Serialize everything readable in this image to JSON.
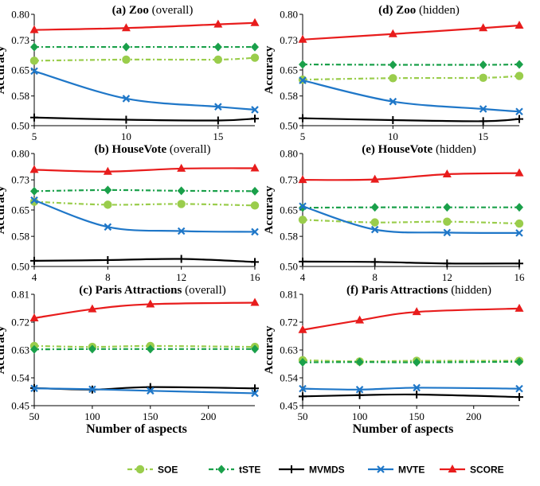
{
  "legend": [
    {
      "key": "SOE",
      "label": "SOE",
      "color": "#9acd4c",
      "dash": "6,3,2,3",
      "marker": "circle"
    },
    {
      "key": "tSTE",
      "label": "tSTE",
      "color": "#1aa04a",
      "dash": "6,3,2,3",
      "marker": "diamond"
    },
    {
      "key": "MVMDS",
      "label": "MVMDS",
      "color": "#000000",
      "dash": "",
      "marker": "plus"
    },
    {
      "key": "MVTE",
      "label": "MVTE",
      "color": "#1f77c8",
      "dash": "",
      "marker": "cross"
    },
    {
      "key": "SCORE",
      "label": "SCORE",
      "color": "#e81c1c",
      "dash": "",
      "marker": "triangle"
    }
  ],
  "chart_data": [
    {
      "type": "line",
      "title_bold": "(a) Zoo",
      "title_rest": " (overall)",
      "xlabel": "",
      "ylabel": "Accuracy",
      "x": [
        5,
        10,
        15,
        17
      ],
      "xticks": [
        5,
        10,
        15
      ],
      "xlim": [
        5,
        17
      ],
      "yticks": [
        "0.50",
        "0.58",
        "0.65",
        "0.73",
        "0.80"
      ],
      "ylim": [
        0.5,
        0.8
      ],
      "series": [
        {
          "name": "SOE",
          "values": [
            0.675,
            0.678,
            0.678,
            0.683
          ]
        },
        {
          "name": "tSTE",
          "values": [
            0.712,
            0.712,
            0.712,
            0.712
          ]
        },
        {
          "name": "MVMDS",
          "values": [
            0.522,
            0.516,
            0.514,
            0.519
          ]
        },
        {
          "name": "MVTE",
          "values": [
            0.647,
            0.573,
            0.551,
            0.543
          ]
        },
        {
          "name": "SCORE",
          "values": [
            0.758,
            0.763,
            0.773,
            0.777
          ]
        }
      ]
    },
    {
      "type": "line",
      "title_bold": "(d) Zoo",
      "title_rest": "  (hidden)",
      "xlabel": "",
      "ylabel": "Accuracy",
      "x": [
        5,
        10,
        15,
        17
      ],
      "xticks": [
        5,
        10,
        15
      ],
      "xlim": [
        5,
        17
      ],
      "yticks": [
        "0.50",
        "0.58",
        "0.65",
        "0.73",
        "0.80"
      ],
      "ylim": [
        0.5,
        0.8
      ],
      "series": [
        {
          "name": "SOE",
          "values": [
            0.624,
            0.628,
            0.629,
            0.634
          ]
        },
        {
          "name": "tSTE",
          "values": [
            0.665,
            0.664,
            0.664,
            0.665
          ]
        },
        {
          "name": "MVMDS",
          "values": [
            0.52,
            0.515,
            0.512,
            0.518
          ]
        },
        {
          "name": "MVTE",
          "values": [
            0.622,
            0.565,
            0.545,
            0.538
          ]
        },
        {
          "name": "SCORE",
          "values": [
            0.732,
            0.747,
            0.763,
            0.77
          ]
        }
      ]
    },
    {
      "type": "line",
      "title_bold": "(b) HouseVote",
      "title_rest": " (overall)",
      "xlabel": "",
      "ylabel": "Accuracy",
      "x": [
        4,
        8,
        12,
        16
      ],
      "xticks": [
        4,
        8,
        12,
        16
      ],
      "xlim": [
        4,
        16
      ],
      "yticks": [
        "0.50",
        "0.58",
        "0.65",
        "0.73",
        "0.80"
      ],
      "ylim": [
        0.5,
        0.8
      ],
      "series": [
        {
          "name": "SOE",
          "values": [
            0.672,
            0.664,
            0.666,
            0.662
          ]
        },
        {
          "name": "tSTE",
          "values": [
            0.7,
            0.703,
            0.701,
            0.7
          ]
        },
        {
          "name": "MVMDS",
          "values": [
            0.515,
            0.517,
            0.52,
            0.512
          ]
        },
        {
          "name": "MVTE",
          "values": [
            0.676,
            0.605,
            0.594,
            0.592
          ]
        },
        {
          "name": "SCORE",
          "values": [
            0.757,
            0.752,
            0.76,
            0.761
          ]
        }
      ]
    },
    {
      "type": "line",
      "title_bold": "(e) HouseVote",
      "title_rest": "  (hidden)",
      "xlabel": "",
      "ylabel": "Accuracy",
      "x": [
        4,
        8,
        12,
        16
      ],
      "xticks": [
        4,
        8,
        12,
        16
      ],
      "xlim": [
        4,
        16
      ],
      "yticks": [
        "0.50",
        "0.58",
        "0.65",
        "0.73",
        "0.80"
      ],
      "ylim": [
        0.5,
        0.8
      ],
      "series": [
        {
          "name": "SOE",
          "values": [
            0.624,
            0.617,
            0.619,
            0.614
          ]
        },
        {
          "name": "tSTE",
          "values": [
            0.656,
            0.657,
            0.657,
            0.657
          ]
        },
        {
          "name": "MVMDS",
          "values": [
            0.513,
            0.512,
            0.508,
            0.508
          ]
        },
        {
          "name": "MVTE",
          "values": [
            0.66,
            0.598,
            0.59,
            0.589
          ]
        },
        {
          "name": "SCORE",
          "values": [
            0.73,
            0.731,
            0.745,
            0.748
          ]
        }
      ]
    },
    {
      "type": "line",
      "title_bold": "(c) Paris Attractions",
      "title_rest": " (overall)",
      "xlabel": "Number of aspects",
      "ylabel": "Accuracy",
      "x": [
        50,
        100,
        150,
        240
      ],
      "xticks": [
        50,
        100,
        150,
        200
      ],
      "xlim": [
        50,
        240
      ],
      "yticks": [
        "0.45",
        "0.54",
        "0.63",
        "0.72",
        "0.81"
      ],
      "ylim": [
        0.45,
        0.81
      ],
      "series": [
        {
          "name": "SOE",
          "values": [
            0.643,
            0.64,
            0.643,
            0.64
          ]
        },
        {
          "name": "tSTE",
          "values": [
            0.632,
            0.633,
            0.633,
            0.633
          ]
        },
        {
          "name": "MVMDS",
          "values": [
            0.507,
            0.502,
            0.51,
            0.506
          ]
        },
        {
          "name": "MVTE",
          "values": [
            0.506,
            0.503,
            0.498,
            0.49
          ]
        },
        {
          "name": "SCORE",
          "values": [
            0.733,
            0.762,
            0.778,
            0.783
          ]
        }
      ]
    },
    {
      "type": "line",
      "title_bold": "(f) Paris Attractions",
      "title_rest": " (hidden)",
      "xlabel": "Number of aspects",
      "ylabel": "Accuracy",
      "x": [
        50,
        100,
        150,
        240
      ],
      "xticks": [
        50,
        100,
        150,
        200
      ],
      "xlim": [
        50,
        240
      ],
      "yticks": [
        "0.45",
        "0.54",
        "0.63",
        "0.72",
        "0.81"
      ],
      "ylim": [
        0.45,
        0.81
      ],
      "series": [
        {
          "name": "SOE",
          "values": [
            0.597,
            0.593,
            0.595,
            0.595
          ]
        },
        {
          "name": "tSTE",
          "values": [
            0.59,
            0.591,
            0.59,
            0.592
          ]
        },
        {
          "name": "MVMDS",
          "values": [
            0.48,
            0.484,
            0.486,
            0.478
          ]
        },
        {
          "name": "MVTE",
          "values": [
            0.505,
            0.502,
            0.508,
            0.505
          ]
        },
        {
          "name": "SCORE",
          "values": [
            0.695,
            0.726,
            0.753,
            0.764
          ]
        }
      ]
    }
  ]
}
